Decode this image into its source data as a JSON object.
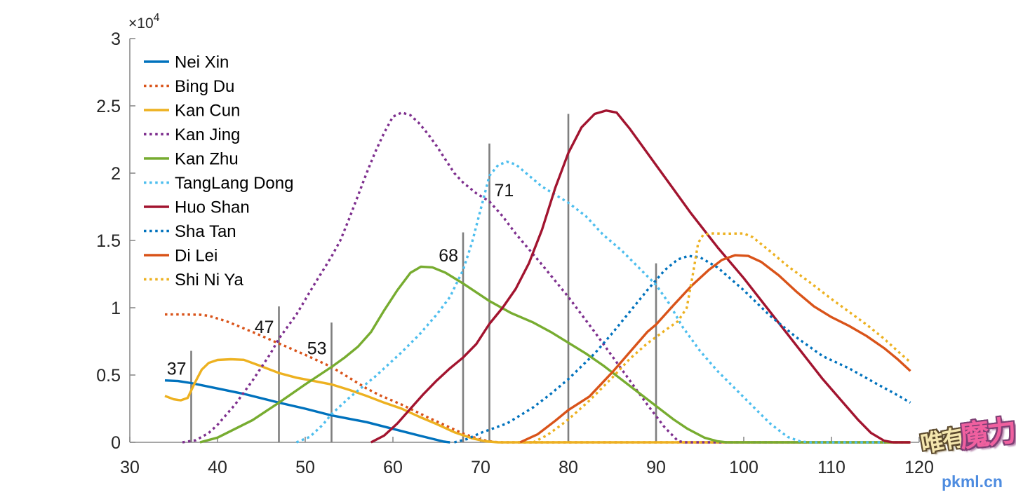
{
  "chart_data": {
    "type": "line",
    "title": "",
    "xlabel": "",
    "ylabel": "",
    "xlim": [
      30,
      120
    ],
    "ylim": [
      0,
      30000
    ],
    "y_unit_scale": 10000,
    "x_axis": {
      "ticks": [
        "30",
        "40",
        "50",
        "60",
        "70",
        "80",
        "90",
        "100",
        "110",
        "120"
      ],
      "tick_values": [
        30,
        40,
        50,
        60,
        70,
        80,
        90,
        100,
        110,
        120
      ]
    },
    "y_axis": {
      "ticks": [
        "0",
        "0.5",
        "1",
        "1.5",
        "2",
        "2.5",
        "3"
      ],
      "tick_values": [
        0,
        0.5,
        1,
        1.5,
        2,
        2.5,
        3
      ],
      "multiplier_base": "×10",
      "multiplier_exponent": "4"
    },
    "grid": false,
    "legend_position": "top-left-inside",
    "colors": {
      "axis": "#8a8a8a",
      "tick_label": "#262626",
      "legend_text": "#000000",
      "marker_line": "#7f7f7f",
      "marker_label": "#111111"
    },
    "series": [
      {
        "name": "Nei Xin",
        "color": "#0072BD",
        "line_style": "solid",
        "points": [
          [
            34,
            0.46
          ],
          [
            35.5,
            0.455
          ],
          [
            37,
            0.44
          ],
          [
            40,
            0.4
          ],
          [
            43,
            0.36
          ],
          [
            47,
            0.295
          ],
          [
            50,
            0.25
          ],
          [
            53,
            0.2
          ],
          [
            57,
            0.15
          ],
          [
            60,
            0.1
          ],
          [
            63,
            0.05
          ],
          [
            65.8,
            0.005
          ],
          [
            66.5,
            0
          ]
        ]
      },
      {
        "name": "Bing Du",
        "color": "#D95319",
        "line_style": "dotted",
        "points": [
          [
            34,
            0.95
          ],
          [
            36,
            0.95
          ],
          [
            38,
            0.948
          ],
          [
            39,
            0.94
          ],
          [
            41,
            0.9
          ],
          [
            44,
            0.82
          ],
          [
            47,
            0.735
          ],
          [
            50,
            0.65
          ],
          [
            53,
            0.56
          ],
          [
            55,
            0.48
          ],
          [
            57,
            0.4
          ],
          [
            58.5,
            0.35
          ],
          [
            61,
            0.28
          ],
          [
            64,
            0.185
          ],
          [
            66,
            0.125
          ],
          [
            68,
            0.065
          ],
          [
            70,
            0.02
          ],
          [
            71.5,
            0.003
          ],
          [
            72.5,
            0
          ],
          [
            119,
            0
          ]
        ]
      },
      {
        "name": "Kan Cun",
        "color": "#EDB120",
        "line_style": "solid",
        "points": [
          [
            34,
            0.345
          ],
          [
            35,
            0.32
          ],
          [
            35.8,
            0.312
          ],
          [
            36.6,
            0.33
          ],
          [
            37.4,
            0.44
          ],
          [
            38.2,
            0.54
          ],
          [
            39,
            0.59
          ],
          [
            40,
            0.612
          ],
          [
            41.5,
            0.617
          ],
          [
            43,
            0.613
          ],
          [
            45,
            0.565
          ],
          [
            47,
            0.515
          ],
          [
            49,
            0.48
          ],
          [
            51,
            0.455
          ],
          [
            53,
            0.43
          ],
          [
            55,
            0.39
          ],
          [
            57,
            0.345
          ],
          [
            59,
            0.295
          ],
          [
            61,
            0.25
          ],
          [
            63,
            0.19
          ],
          [
            65,
            0.135
          ],
          [
            67,
            0.075
          ],
          [
            69,
            0.03
          ],
          [
            70.5,
            0.008
          ],
          [
            72,
            0
          ],
          [
            119,
            0
          ]
        ]
      },
      {
        "name": "Kan Jing",
        "color": "#7E2F8E",
        "line_style": "dotted",
        "points": [
          [
            36,
            0
          ],
          [
            37.5,
            0.015
          ],
          [
            39,
            0.07
          ],
          [
            40,
            0.13
          ],
          [
            42,
            0.28
          ],
          [
            44,
            0.46
          ],
          [
            46,
            0.655
          ],
          [
            47,
            0.77
          ],
          [
            49,
            0.95
          ],
          [
            51,
            1.17
          ],
          [
            53,
            1.38
          ],
          [
            54,
            1.5
          ],
          [
            55,
            1.66
          ],
          [
            56,
            1.83
          ],
          [
            57,
            2.0
          ],
          [
            58,
            2.16
          ],
          [
            59,
            2.3
          ],
          [
            60,
            2.42
          ],
          [
            61,
            2.45
          ],
          [
            62,
            2.43
          ],
          [
            63,
            2.37
          ],
          [
            64,
            2.29
          ],
          [
            65,
            2.2
          ],
          [
            66,
            2.1
          ],
          [
            67,
            2.0
          ],
          [
            68,
            1.93
          ],
          [
            69.5,
            1.85
          ],
          [
            71,
            1.79
          ],
          [
            72.5,
            1.68
          ],
          [
            74,
            1.55
          ],
          [
            77,
            1.32
          ],
          [
            80,
            1.08
          ],
          [
            83,
            0.82
          ],
          [
            86,
            0.55
          ],
          [
            89,
            0.28
          ],
          [
            91,
            0.11
          ],
          [
            92.5,
            0.01
          ],
          [
            93.2,
            0
          ],
          [
            119,
            0
          ]
        ]
      },
      {
        "name": "Kan Zhu",
        "color": "#77AC30",
        "line_style": "solid",
        "points": [
          [
            38,
            0
          ],
          [
            40,
            0.035
          ],
          [
            42,
            0.1
          ],
          [
            44,
            0.165
          ],
          [
            47,
            0.295
          ],
          [
            50,
            0.43
          ],
          [
            53,
            0.56
          ],
          [
            54.5,
            0.63
          ],
          [
            56,
            0.71
          ],
          [
            57.5,
            0.82
          ],
          [
            59,
            0.98
          ],
          [
            60.5,
            1.13
          ],
          [
            62,
            1.26
          ],
          [
            63.2,
            1.305
          ],
          [
            64.5,
            1.3
          ],
          [
            66,
            1.26
          ],
          [
            68,
            1.18
          ],
          [
            71,
            1.05
          ],
          [
            73.5,
            0.96
          ],
          [
            76,
            0.89
          ],
          [
            78,
            0.82
          ],
          [
            80,
            0.74
          ],
          [
            82,
            0.66
          ],
          [
            84,
            0.57
          ],
          [
            86,
            0.47
          ],
          [
            88,
            0.37
          ],
          [
            90,
            0.27
          ],
          [
            92,
            0.17
          ],
          [
            93.6,
            0.1
          ],
          [
            95.5,
            0.035
          ],
          [
            97,
            0.008
          ],
          [
            98,
            0
          ],
          [
            119,
            0
          ]
        ]
      },
      {
        "name": "TangLang Dong",
        "color": "#4DBEEE",
        "line_style": "dotted",
        "points": [
          [
            49,
            0
          ],
          [
            50.5,
            0.04
          ],
          [
            52,
            0.13
          ],
          [
            53,
            0.21
          ],
          [
            55,
            0.33
          ],
          [
            58,
            0.49
          ],
          [
            61,
            0.67
          ],
          [
            63,
            0.8
          ],
          [
            65,
            0.95
          ],
          [
            66.5,
            1.08
          ],
          [
            68,
            1.28
          ],
          [
            69,
            1.48
          ],
          [
            70,
            1.73
          ],
          [
            71,
            1.98
          ],
          [
            72,
            2.06
          ],
          [
            73,
            2.085
          ],
          [
            74,
            2.065
          ],
          [
            75,
            2.01
          ],
          [
            77,
            1.9
          ],
          [
            80,
            1.78
          ],
          [
            82,
            1.68
          ],
          [
            84,
            1.54
          ],
          [
            86,
            1.43
          ],
          [
            88,
            1.3
          ],
          [
            90,
            1.17
          ],
          [
            91.5,
            1.03
          ],
          [
            93,
            0.86
          ],
          [
            95,
            0.68
          ],
          [
            97,
            0.53
          ],
          [
            99,
            0.4
          ],
          [
            101,
            0.27
          ],
          [
            103,
            0.14
          ],
          [
            105,
            0.04
          ],
          [
            106.5,
            0.005
          ],
          [
            107.5,
            0
          ],
          [
            116,
            0
          ]
        ]
      },
      {
        "name": "Huo Shan",
        "color": "#A2142F",
        "line_style": "solid",
        "points": [
          [
            57.5,
            0
          ],
          [
            59,
            0.05
          ],
          [
            60.5,
            0.14
          ],
          [
            62,
            0.25
          ],
          [
            63.5,
            0.36
          ],
          [
            65,
            0.46
          ],
          [
            66.5,
            0.55
          ],
          [
            68,
            0.63
          ],
          [
            69.5,
            0.73
          ],
          [
            71,
            0.88
          ],
          [
            72.5,
            1.0
          ],
          [
            74,
            1.14
          ],
          [
            75.5,
            1.33
          ],
          [
            77,
            1.58
          ],
          [
            78.5,
            1.89
          ],
          [
            80,
            2.15
          ],
          [
            81.5,
            2.34
          ],
          [
            83,
            2.44
          ],
          [
            84.3,
            2.465
          ],
          [
            85.5,
            2.45
          ],
          [
            87,
            2.33
          ],
          [
            88,
            2.24
          ],
          [
            90,
            2.06
          ],
          [
            92,
            1.88
          ],
          [
            94,
            1.7
          ],
          [
            97,
            1.45
          ],
          [
            100,
            1.22
          ],
          [
            103,
            0.97
          ],
          [
            106,
            0.72
          ],
          [
            109,
            0.47
          ],
          [
            111,
            0.32
          ],
          [
            113,
            0.17
          ],
          [
            114.5,
            0.07
          ],
          [
            116,
            0.012
          ],
          [
            117,
            0
          ],
          [
            119,
            0
          ]
        ]
      },
      {
        "name": "Sha Tan",
        "color": "#0072BD",
        "line_style": "dotted",
        "points": [
          [
            67,
            0
          ],
          [
            68.5,
            0.025
          ],
          [
            70,
            0.07
          ],
          [
            73,
            0.14
          ],
          [
            76,
            0.26
          ],
          [
            78,
            0.36
          ],
          [
            80,
            0.47
          ],
          [
            83,
            0.66
          ],
          [
            85,
            0.81
          ],
          [
            87,
            0.97
          ],
          [
            89,
            1.13
          ],
          [
            91,
            1.28
          ],
          [
            92.5,
            1.36
          ],
          [
            93.7,
            1.385
          ],
          [
            95,
            1.375
          ],
          [
            97,
            1.3
          ],
          [
            100,
            1.13
          ],
          [
            103,
            0.94
          ],
          [
            106,
            0.78
          ],
          [
            109,
            0.64
          ],
          [
            112,
            0.55
          ],
          [
            115,
            0.44
          ],
          [
            117,
            0.37
          ],
          [
            119,
            0.295
          ]
        ]
      },
      {
        "name": "Di Lei",
        "color": "#D95319",
        "line_style": "solid",
        "points": [
          [
            74.5,
            0
          ],
          [
            76.5,
            0.06
          ],
          [
            78.5,
            0.16
          ],
          [
            80,
            0.24
          ],
          [
            82.4,
            0.34
          ],
          [
            85,
            0.52
          ],
          [
            87,
            0.67
          ],
          [
            89,
            0.82
          ],
          [
            90,
            0.875
          ],
          [
            92,
            1.02
          ],
          [
            94,
            1.16
          ],
          [
            96,
            1.28
          ],
          [
            97.5,
            1.355
          ],
          [
            99,
            1.39
          ],
          [
            100.5,
            1.385
          ],
          [
            102,
            1.34
          ],
          [
            104,
            1.24
          ],
          [
            106,
            1.12
          ],
          [
            108,
            1.01
          ],
          [
            110,
            0.93
          ],
          [
            112,
            0.865
          ],
          [
            114,
            0.79
          ],
          [
            116,
            0.7
          ],
          [
            117.5,
            0.62
          ],
          [
            119,
            0.53
          ]
        ]
      },
      {
        "name": "Shi Ni Ya",
        "color": "#EDB120",
        "line_style": "dotted",
        "points": [
          [
            76,
            0
          ],
          [
            77.5,
            0.05
          ],
          [
            79,
            0.12
          ],
          [
            80,
            0.17
          ],
          [
            82.4,
            0.31
          ],
          [
            85,
            0.48
          ],
          [
            87,
            0.62
          ],
          [
            89,
            0.735
          ],
          [
            91,
            0.83
          ],
          [
            92.5,
            0.9
          ],
          [
            93.5,
            1.0
          ],
          [
            94.2,
            1.25
          ],
          [
            94.8,
            1.48
          ],
          [
            95.4,
            1.545
          ],
          [
            96.5,
            1.552
          ],
          [
            98,
            1.55
          ],
          [
            100,
            1.552
          ],
          [
            101,
            1.525
          ],
          [
            103,
            1.42
          ],
          [
            105,
            1.31
          ],
          [
            107.5,
            1.19
          ],
          [
            110,
            1.065
          ],
          [
            112,
            0.97
          ],
          [
            114,
            0.875
          ],
          [
            116,
            0.77
          ],
          [
            117.5,
            0.68
          ],
          [
            119,
            0.595
          ]
        ]
      }
    ],
    "marker_lines": [
      {
        "x": 37,
        "top": 0.68,
        "label": "37",
        "label_side": "left",
        "label_y": 0.55
      },
      {
        "x": 47,
        "top": 1.01,
        "label": "47",
        "label_side": "left",
        "label_y": 0.86
      },
      {
        "x": 53,
        "top": 0.89,
        "label": "53",
        "label_side": "left",
        "label_y": 0.7
      },
      {
        "x": 68,
        "top": 1.56,
        "label": "68",
        "label_side": "left",
        "label_y": 1.39
      },
      {
        "x": 71,
        "top": 2.22,
        "label": "71",
        "label_side": "right",
        "label_y": 1.875
      },
      {
        "x": 80,
        "top": 2.44,
        "label": "",
        "label_side": "left",
        "label_y": 0
      },
      {
        "x": 90,
        "top": 1.33,
        "label": "",
        "label_side": "left",
        "label_y": 0
      }
    ]
  },
  "watermark": {
    "text_cn_1": "唯有",
    "text_cn_2": "魔力",
    "text_url": "pkml.cn",
    "color_cn_1": "#f4e6ae",
    "color_cn_2": "#f0609f",
    "color_url": "#4e8ce0"
  }
}
